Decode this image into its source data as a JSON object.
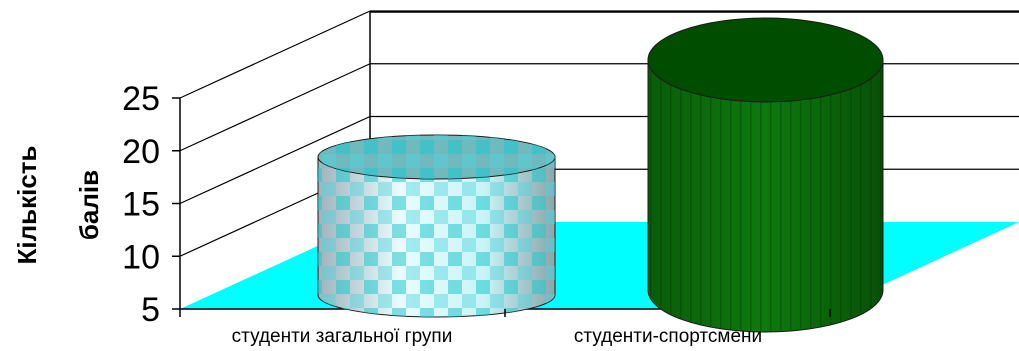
{
  "chart_data": {
    "type": "bar",
    "style": "3d-cylinder",
    "categories": [
      "студенти загальної групи",
      "студенти-спортсмени"
    ],
    "values": [
      17,
      25
    ],
    "ylabel_lines": [
      "Кількість",
      "балів"
    ],
    "yticks": [
      "5",
      "10",
      "15",
      "20",
      "25"
    ],
    "ylim": [
      5,
      25
    ],
    "grid": true,
    "legend": "none",
    "colors": {
      "floor": "#00ffff",
      "bar1_light": "#e8fbff",
      "bar1_pattern": "#1ec8cc",
      "bar2_body": "#006400",
      "bar2_top": "#004d00",
      "grid": "#000000"
    }
  }
}
